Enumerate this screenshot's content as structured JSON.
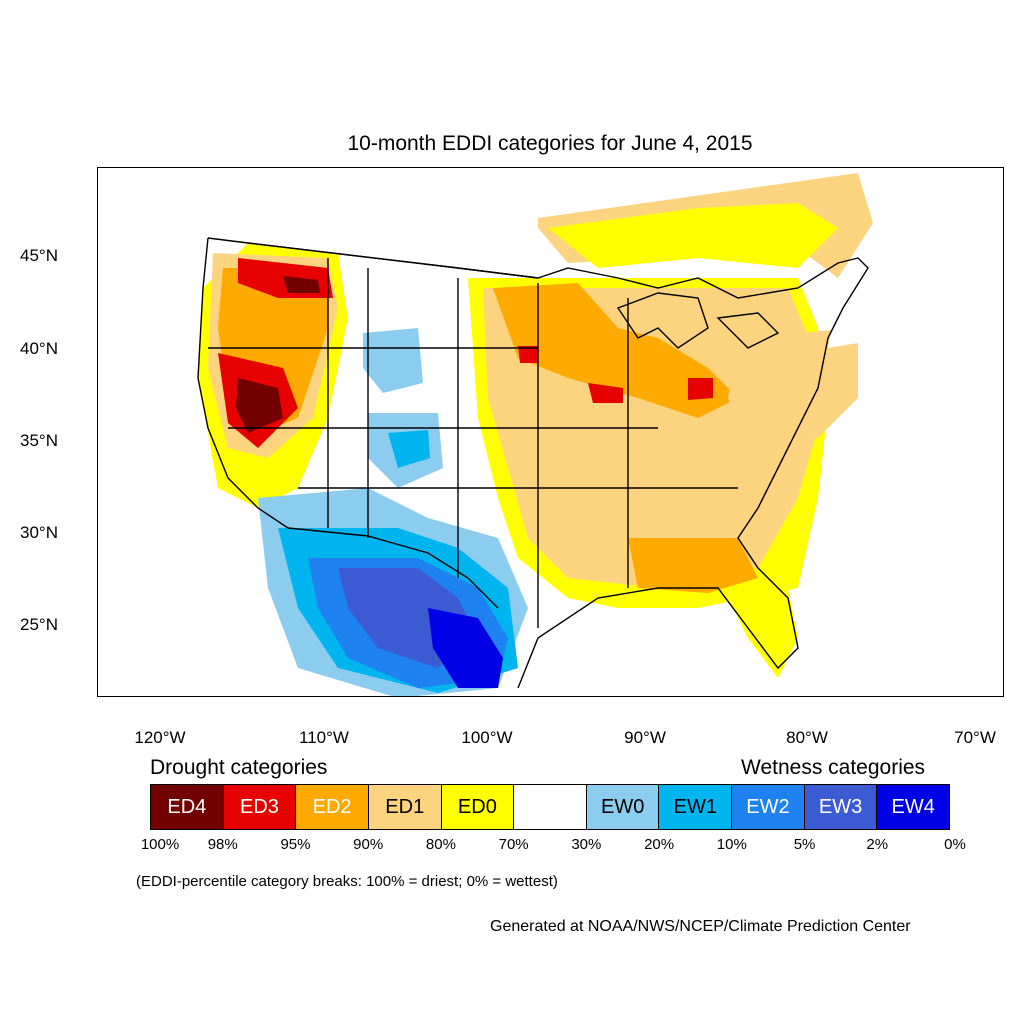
{
  "title": "10-month EDDI categories for June 4, 2015",
  "lat_labels": [
    "45°N",
    "40°N",
    "35°N",
    "30°N",
    "25°N"
  ],
  "lon_labels": [
    "120°W",
    "110°W",
    "100°W",
    "90°W",
    "80°W",
    "70°W"
  ],
  "legend": {
    "drought_heading": "Drought categories",
    "wetness_heading": "Wetness categories",
    "categories": [
      {
        "label": "ED4",
        "color": "#730000",
        "text_color": "#ffffff"
      },
      {
        "label": "ED3",
        "color": "#e60000",
        "text_color": "#ffffff"
      },
      {
        "label": "ED2",
        "color": "#ffaa00",
        "text_color": "#ffffff"
      },
      {
        "label": "ED1",
        "color": "#fcd37f",
        "text_color": "#000000"
      },
      {
        "label": "ED0",
        "color": "#ffff00",
        "text_color": "#000000"
      },
      {
        "label": "",
        "color": "#ffffff",
        "text_color": "#000000"
      },
      {
        "label": "EW0",
        "color": "#8ccdef",
        "text_color": "#000000"
      },
      {
        "label": "EW1",
        "color": "#00b4f0",
        "text_color": "#000000"
      },
      {
        "label": "EW2",
        "color": "#1e82f0",
        "text_color": "#ffffff"
      },
      {
        "label": "EW3",
        "color": "#3c5ad2",
        "text_color": "#ffffff"
      },
      {
        "label": "EW4",
        "color": "#0000e6",
        "text_color": "#ffffff"
      }
    ],
    "breaks": [
      "100%",
      "98%",
      "95%",
      "90%",
      "80%",
      "70%",
      "30%",
      "20%",
      "10%",
      "5%",
      "2%",
      "0%"
    ]
  },
  "note": "(EDDI-percentile category breaks: 100% = driest; 0% = wettest)",
  "credit": "Generated at NOAA/NWS/NCEP/Climate Prediction Center"
}
